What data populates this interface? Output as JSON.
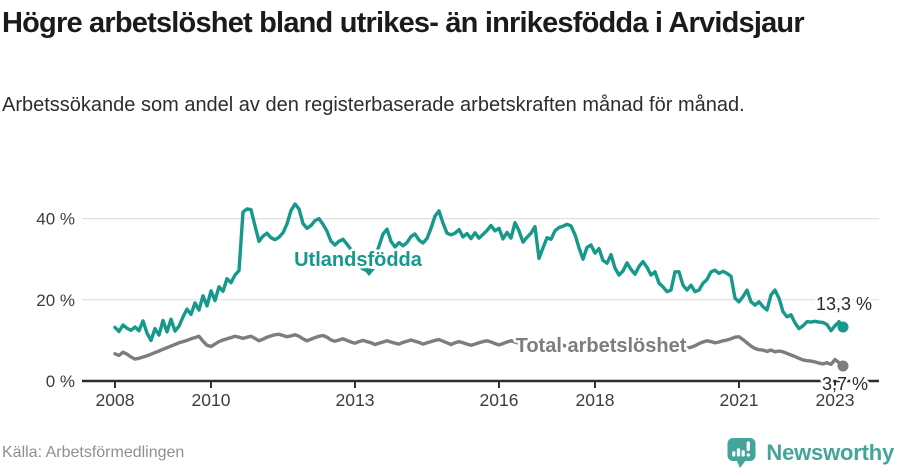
{
  "header": {
    "title": "Högre arbetslöshet bland utrikes- än inrikesfödda i Arvidsjaur",
    "subtitle": "Arbetssökande som andel av den registerbaserade arbetskraften månad för månad."
  },
  "footer": {
    "source": "Källa: Arbetsförmedlingen",
    "brand": "Newsworthy",
    "brand_icon": "newsworthy-speech-bubble-bar-chart-icon"
  },
  "colors": {
    "accent_teal": "#16998b",
    "series_gray": "#7d7d7d",
    "axis": "#2e2e2e",
    "gridline": "#dbdbdb",
    "tick_text": "#3d3d3d",
    "value_label_text": "#2a2a2a",
    "muted_text": "#8f8f8f",
    "brand_teal": "#43a49b"
  },
  "chart_data": {
    "type": "line",
    "title": "Högre arbetslöshet bland utrikes- än inrikesfödda i Arvidsjaur",
    "x_unit": "month",
    "frequency": "monthly",
    "x_range": [
      "2008-01",
      "2023-03"
    ],
    "x_tick_labels": [
      "2008",
      "2010",
      "2013",
      "2016",
      "2018",
      "2021",
      "2023"
    ],
    "x_tick_month_index": [
      0,
      24,
      60,
      96,
      120,
      156,
      180
    ],
    "y_ticks": [
      0,
      20,
      40
    ],
    "y_tick_labels": [
      "0 %",
      "20 %",
      "40 %"
    ],
    "ylim": [
      0,
      46
    ],
    "grid": "horizontal",
    "legend_position": "inline-labels",
    "series": [
      {
        "name": "Utlandsfödda",
        "line_label": "Utlandsfödda",
        "color": "#16998b",
        "end_value": 13.3,
        "end_value_label": "13,3 %",
        "values": [
          13.2,
          12.2,
          13.8,
          13.0,
          12.5,
          13.3,
          12.4,
          14.8,
          11.8,
          10.0,
          12.9,
          11.3,
          14.9,
          12.1,
          15.2,
          12.3,
          13.5,
          15.8,
          17.7,
          16.4,
          19.2,
          17.5,
          21.0,
          18.5,
          22.2,
          19.8,
          23.2,
          22.1,
          25.2,
          24.2,
          26.1,
          27.2,
          41.6,
          42.4,
          42.2,
          38.2,
          34.4,
          35.7,
          36.4,
          35.3,
          34.8,
          35.4,
          36.5,
          38.7,
          42.0,
          43.6,
          42.4,
          38.8,
          37.6,
          38.3,
          39.5,
          40.0,
          38.6,
          36.9,
          34.4,
          33.5,
          34.4,
          34.9,
          33.7,
          32.4,
          30.2,
          28.4,
          27.6,
          27.2,
          28.2,
          30.6,
          33.2,
          36.2,
          37.4,
          34.4,
          33.0,
          34.1,
          33.3,
          34.1,
          35.6,
          36.2,
          34.7,
          34.0,
          35.1,
          37.6,
          40.6,
          41.9,
          38.9,
          36.4,
          36.0,
          36.4,
          37.3,
          35.5,
          36.3,
          35.1,
          36.5,
          35.2,
          36.1,
          37.1,
          38.3,
          37.0,
          37.6,
          35.0,
          36.6,
          35.2,
          39.0,
          37.0,
          34.2,
          35.4,
          36.4,
          38.0,
          30.2,
          32.8,
          35.3,
          34.9,
          37.0,
          37.8,
          38.1,
          38.6,
          38.2,
          36.0,
          32.8,
          30.0,
          32.9,
          33.5,
          31.5,
          32.6,
          29.7,
          29.0,
          31.1,
          27.8,
          26.1,
          27.1,
          29.1,
          27.5,
          26.3,
          28.2,
          29.4,
          28.0,
          26.1,
          26.9,
          24.1,
          23.2,
          22.0,
          22.4,
          26.9,
          26.9,
          23.6,
          22.4,
          23.6,
          22.0,
          22.4,
          24.1,
          25.0,
          26.9,
          27.3,
          26.5,
          27.0,
          26.5,
          25.8,
          20.4,
          19.5,
          20.8,
          22.4,
          19.5,
          18.7,
          19.5,
          18.3,
          17.5,
          21.2,
          22.4,
          20.4,
          17.1,
          15.8,
          16.3,
          14.3,
          12.9,
          13.6,
          14.6,
          14.5,
          14.7,
          14.5,
          14.4,
          13.9,
          12.4,
          13.6,
          14.6,
          13.3
        ]
      },
      {
        "name": "Total arbetslöshet",
        "line_label": "Total arbetslöshet",
        "color": "#7d7d7d",
        "end_value": 3.7,
        "end_value_label": "3,7 %",
        "values": [
          6.7,
          6.3,
          7.1,
          6.6,
          5.9,
          5.4,
          5.6,
          5.9,
          6.2,
          6.6,
          7.0,
          7.4,
          7.8,
          8.2,
          8.6,
          9.0,
          9.4,
          9.7,
          10.0,
          10.4,
          10.7,
          11.0,
          9.8,
          8.8,
          8.5,
          9.1,
          9.7,
          10.1,
          10.4,
          10.7,
          11.0,
          10.8,
          10.5,
          10.8,
          11.0,
          10.5,
          9.9,
          10.3,
          10.8,
          11.1,
          11.4,
          11.5,
          11.2,
          10.9,
          11.1,
          11.4,
          11.0,
          10.4,
          9.9,
          10.3,
          10.7,
          11.0,
          11.2,
          10.8,
          10.1,
          9.8,
          10.1,
          10.4,
          10.0,
          9.6,
          9.3,
          9.7,
          10.0,
          9.7,
          9.4,
          9.0,
          9.3,
          9.6,
          9.9,
          9.6,
          9.3,
          9.1,
          9.5,
          9.8,
          10.1,
          9.8,
          9.5,
          9.1,
          9.4,
          9.7,
          10.0,
          10.2,
          9.8,
          9.4,
          9.0,
          9.4,
          9.7,
          9.4,
          9.1,
          8.8,
          9.1,
          9.4,
          9.7,
          9.9,
          9.6,
          9.2,
          8.9,
          9.2,
          9.6,
          9.9,
          9.6,
          9.3,
          9.0,
          9.2,
          9.5,
          9.8,
          9.4,
          9.0,
          8.7,
          9.0,
          9.4,
          9.1,
          8.8,
          8.5,
          8.7,
          9.0,
          9.3,
          9.0,
          8.7,
          8.4,
          8.1,
          8.4,
          8.7,
          8.4,
          8.1,
          7.8,
          8.0,
          8.3,
          8.6,
          8.3,
          8.0,
          7.7,
          7.9,
          8.2,
          8.5,
          8.2,
          7.9,
          7.7,
          7.9,
          8.2,
          8.5,
          8.8,
          8.4,
          8.1,
          8.3,
          8.7,
          9.2,
          9.6,
          9.9,
          9.7,
          9.4,
          9.6,
          9.9,
          10.1,
          10.4,
          10.8,
          10.9,
          10.2,
          9.4,
          8.6,
          8.0,
          7.7,
          7.6,
          7.3,
          7.6,
          7.2,
          7.4,
          7.2,
          6.8,
          6.4,
          6.0,
          5.6,
          5.2,
          5.0,
          4.9,
          4.7,
          4.4,
          4.2,
          4.5,
          4.1,
          5.3,
          4.5,
          3.7
        ]
      }
    ]
  }
}
